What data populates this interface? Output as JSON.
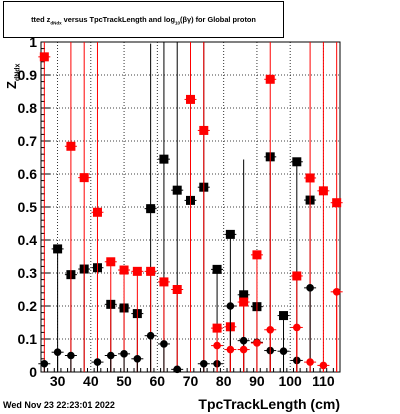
{
  "title": {
    "prefix": "tted  z",
    "sub1": "dNdx",
    "middle": "  versus TpcTrackLength and log",
    "sub2": "10",
    "suffix": "(βγ) for Global proton"
  },
  "ylabel": {
    "main": "Z",
    "sub": "dNdx"
  },
  "xlabel": "TpcTrackLength (cm)",
  "datestamp": "Wed Nov 23 22:23:01 2022",
  "colors": {
    "black": "#000000",
    "red": "#ff0000",
    "grid": "#000000"
  },
  "chart_data": {
    "type": "scatter",
    "xlim": [
      25,
      115
    ],
    "ylim": [
      0,
      1
    ],
    "xticks": [
      30,
      40,
      50,
      60,
      70,
      80,
      90,
      100,
      110
    ],
    "xtick_labels": [
      "30",
      "40",
      "50",
      "60",
      "70",
      "80",
      "90",
      "100",
      "110"
    ],
    "yticks": [
      0,
      0.1,
      0.2,
      0.3,
      0.4,
      0.5,
      0.6,
      0.7,
      0.8,
      0.9,
      1
    ],
    "ytick_labels": [
      "0",
      "0.1",
      "0.2",
      "0.3",
      "0.4",
      "0.5",
      "0.6",
      "0.7",
      "0.8",
      "0.9",
      "1"
    ],
    "grid": true,
    "series": [
      {
        "marker": "square",
        "color": "black",
        "points": [
          {
            "x": 30,
            "y": 0.373,
            "yerr": 0.0
          },
          {
            "x": 34,
            "y": 0.295,
            "yerr": 0.0
          },
          {
            "x": 38,
            "y": 0.312,
            "yerr": 0.0
          },
          {
            "x": 42,
            "y": 0.316,
            "yerr": 0.0
          },
          {
            "x": 46,
            "y": 0.205,
            "yerr": 0.0
          },
          {
            "x": 50,
            "y": 0.194,
            "yerr": 0.0
          },
          {
            "x": 54,
            "y": 0.177,
            "yerr": 0.0
          },
          {
            "x": 58,
            "y": 0.495,
            "yerr": 0.5
          },
          {
            "x": 62,
            "y": 0.645,
            "yerr": 0.36
          },
          {
            "x": 66,
            "y": 0.551,
            "yerr": 0.45
          },
          {
            "x": 70,
            "y": 0.52,
            "yerr": 0.48
          },
          {
            "x": 74,
            "y": 0.56,
            "yerr": 0.44
          },
          {
            "x": 78,
            "y": 0.311,
            "yerr": 0.0
          },
          {
            "x": 82,
            "y": 0.417,
            "yerr": 0.0
          },
          {
            "x": 86,
            "y": 0.234,
            "yerr": 0.41
          },
          {
            "x": 90,
            "y": 0.198,
            "yerr": 0.0
          },
          {
            "x": 94,
            "y": 0.652,
            "yerr": 0.0
          },
          {
            "x": 98,
            "y": 0.171,
            "yerr": 0.0
          },
          {
            "x": 102,
            "y": 0.637,
            "yerr": 0.0
          },
          {
            "x": 106,
            "y": 0.521,
            "yerr": 0.0
          }
        ]
      },
      {
        "marker": "square",
        "color": "red",
        "points": [
          {
            "x": 26,
            "y": 0.955,
            "yerr": 0.05
          },
          {
            "x": 34,
            "y": 0.684,
            "yerr": 0.316
          },
          {
            "x": 38,
            "y": 0.589,
            "yerr": 0.411
          },
          {
            "x": 42,
            "y": 0.484,
            "yerr": 0.516
          },
          {
            "x": 46,
            "y": 0.334,
            "yerr": 0.0
          },
          {
            "x": 50,
            "y": 0.309,
            "yerr": 0.0
          },
          {
            "x": 54,
            "y": 0.305,
            "yerr": 0.0
          },
          {
            "x": 58,
            "y": 0.305,
            "yerr": 0.0
          },
          {
            "x": 62,
            "y": 0.273,
            "yerr": 0.0
          },
          {
            "x": 66,
            "y": 0.25,
            "yerr": 0.0
          },
          {
            "x": 70,
            "y": 0.826,
            "yerr": 0.174
          },
          {
            "x": 74,
            "y": 0.732,
            "yerr": 0.268
          },
          {
            "x": 78,
            "y": 0.133,
            "yerr": 0.0
          },
          {
            "x": 82,
            "y": 0.137,
            "yerr": 0.0
          },
          {
            "x": 86,
            "y": 0.212,
            "yerr": 0.0
          },
          {
            "x": 90,
            "y": 0.355,
            "yerr": 0.0
          },
          {
            "x": 94,
            "y": 0.887,
            "yerr": 0.113
          },
          {
            "x": 102,
            "y": 0.291,
            "yerr": 0.0
          },
          {
            "x": 106,
            "y": 0.588,
            "yerr": 0.412
          },
          {
            "x": 110,
            "y": 0.549,
            "yerr": 0.451
          },
          {
            "x": 114,
            "y": 0.513,
            "yerr": 0.487
          }
        ]
      },
      {
        "marker": "circle",
        "color": "black",
        "points": [
          {
            "x": 26,
            "y": 0.025,
            "yerr": 0.0
          },
          {
            "x": 30,
            "y": 0.06,
            "yerr": 0.0
          },
          {
            "x": 34,
            "y": 0.05,
            "yerr": 0.0
          },
          {
            "x": 42,
            "y": 0.03,
            "yerr": 0.0
          },
          {
            "x": 46,
            "y": 0.05,
            "yerr": 0.0
          },
          {
            "x": 50,
            "y": 0.055,
            "yerr": 0.0
          },
          {
            "x": 54,
            "y": 0.04,
            "yerr": 0.0
          },
          {
            "x": 58,
            "y": 0.11,
            "yerr": 0.0
          },
          {
            "x": 62,
            "y": 0.085,
            "yerr": 0.0
          },
          {
            "x": 66,
            "y": 0.008,
            "yerr": 0.0
          },
          {
            "x": 74,
            "y": 0.025,
            "yerr": 0.0
          },
          {
            "x": 78,
            "y": 0.025,
            "yerr": 0.0
          },
          {
            "x": 82,
            "y": 0.2,
            "yerr": 0.0
          },
          {
            "x": 86,
            "y": 0.095,
            "yerr": 0.0
          },
          {
            "x": 90,
            "y": 0.09,
            "yerr": 0.0
          },
          {
            "x": 94,
            "y": 0.065,
            "yerr": 0.0
          },
          {
            "x": 98,
            "y": 0.063,
            "yerr": 0.0
          },
          {
            "x": 102,
            "y": 0.035,
            "yerr": 0.0
          },
          {
            "x": 106,
            "y": 0.255,
            "yerr": 0.0
          }
        ]
      },
      {
        "marker": "circle",
        "color": "red",
        "points": [
          {
            "x": 78,
            "y": 0.08,
            "yerr": 0.0
          },
          {
            "x": 82,
            "y": 0.068,
            "yerr": 0.0
          },
          {
            "x": 86,
            "y": 0.068,
            "yerr": 0.0
          },
          {
            "x": 90,
            "y": 0.088,
            "yerr": 0.0
          },
          {
            "x": 94,
            "y": 0.128,
            "yerr": 0.0
          },
          {
            "x": 102,
            "y": 0.135,
            "yerr": 0.0
          },
          {
            "x": 106,
            "y": 0.03,
            "yerr": 0.0
          },
          {
            "x": 110,
            "y": 0.02,
            "yerr": 0.0
          },
          {
            "x": 114,
            "y": 0.243,
            "yerr": 0.0
          }
        ]
      }
    ]
  }
}
